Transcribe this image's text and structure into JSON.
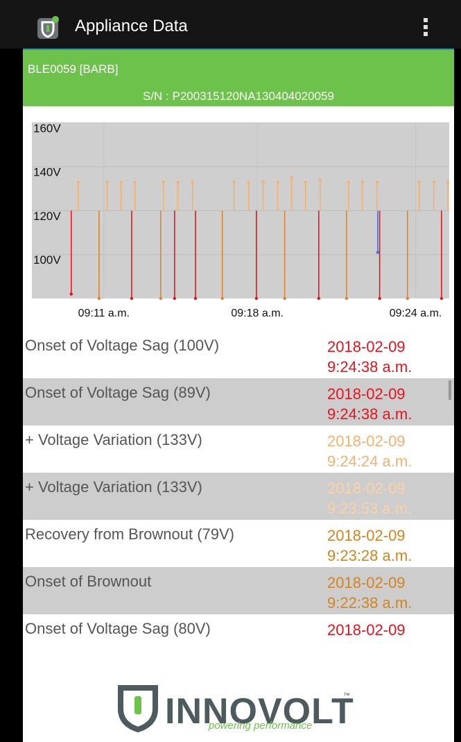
{
  "app_bar": {
    "title": "Appliance Data"
  },
  "device": {
    "name": "BLE0059 [BARB]",
    "serial": "S/N : P200315120NA130404020059"
  },
  "chart": {
    "type": "spike",
    "baseline": 120,
    "ylim": [
      80,
      160
    ],
    "yticks": [
      {
        "value": 160,
        "label": "160V"
      },
      {
        "value": 140,
        "label": "140V"
      },
      {
        "value": 120,
        "label": "120V"
      },
      {
        "value": 100,
        "label": "100V"
      }
    ],
    "xlim": [
      8,
      25.4
    ],
    "xticks": [
      {
        "value": 11,
        "label": "09:11 a.m."
      },
      {
        "value": 17.4,
        "label": "09:18 a.m."
      },
      {
        "value": 24,
        "label": "09:24 a.m."
      }
    ],
    "grid": true,
    "series": [
      {
        "color": "#f5b26e",
        "x": [
          9.93,
          11.14,
          11.72,
          12.3,
          13.49,
          14.09,
          14.7,
          16.43,
          17.04,
          17.65,
          18.25,
          18.83,
          19.41,
          20.02,
          21.2,
          21.78,
          22.39,
          24.15,
          24.76,
          25.34
        ],
        "values": [
          133,
          133,
          133,
          133,
          133,
          133,
          133,
          133,
          133,
          133,
          133,
          135,
          133,
          134,
          133,
          133,
          133,
          133,
          133,
          133
        ]
      },
      {
        "color": "#e0822a",
        "x": [
          10.8,
          13.37,
          15.94,
          18.54,
          21.12,
          23.66
        ],
        "values": [
          80,
          80,
          80,
          80,
          80,
          80
        ]
      },
      {
        "color": "#e8141c",
        "x": [
          9.64,
          12.16,
          13.95,
          14.82,
          17.36,
          19.96,
          22.5,
          25.08
        ],
        "values": [
          82,
          80,
          80,
          80,
          80,
          80,
          80,
          80
        ]
      },
      {
        "color": "#4a6fd8",
        "x": [
          22.42
        ],
        "values": [
          101
        ]
      }
    ]
  },
  "events": [
    {
      "label": "Onset of Voltage Sag (100V)",
      "date": "2018-02-09",
      "time": "9:24:38 a.m.",
      "color": "#e8141c"
    },
    {
      "label": "Onset of Voltage Sag (89V)",
      "date": "2018-02-09",
      "time": "9:24:38 a.m.",
      "color": "#e8141c"
    },
    {
      "label": "+ Voltage Variation (133V)",
      "date": "2018-02-09",
      "time": "9:24:24 a.m.",
      "color": "#f5b26e"
    },
    {
      "label": "+ Voltage Variation (133V)",
      "date": "2018-02-09",
      "time": "9:23:53 a.m.",
      "color": "#fbd2a8"
    },
    {
      "label": "Recovery from Brownout (79V)",
      "date": "2018-02-09",
      "time": "9:23:28 a.m.",
      "color": "#d4841f"
    },
    {
      "label": "Onset of Brownout",
      "date": "2018-02-09",
      "time": "9:22:38 a.m.",
      "color": "#d4841f"
    },
    {
      "label": "Onset of Voltage Sag (80V)",
      "date": "2018-02-09",
      "color": "#e8141c"
    }
  ],
  "footer": {
    "brand": "INNOVOLT",
    "trademark": "™",
    "tagline": "powering performance"
  }
}
